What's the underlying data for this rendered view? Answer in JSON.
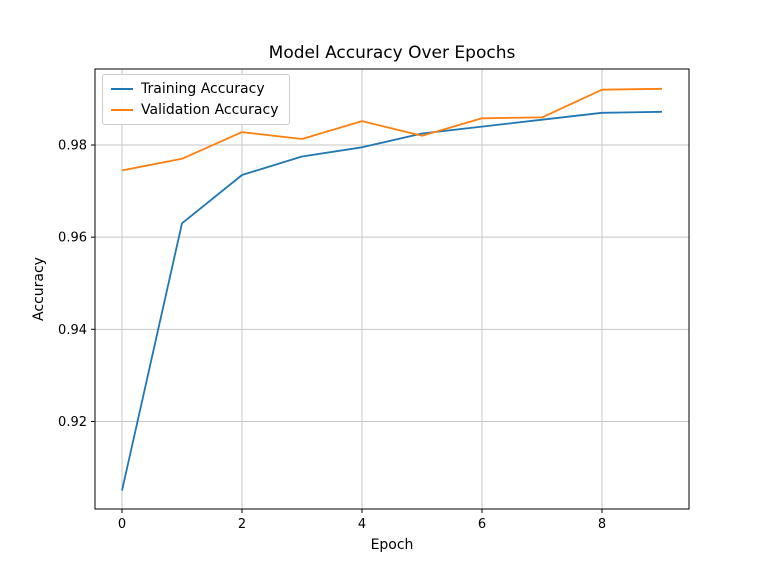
{
  "chart_data": {
    "type": "line",
    "title": "Model Accuracy Over Epochs",
    "xlabel": "Epoch",
    "ylabel": "Accuracy",
    "x": [
      0,
      1,
      2,
      3,
      4,
      5,
      6,
      7,
      8,
      9
    ],
    "series": [
      {
        "name": "Training Accuracy",
        "color": "#1f77b4",
        "values": [
          0.905,
          0.963,
          0.9735,
          0.9775,
          0.9795,
          0.9825,
          0.984,
          0.9855,
          0.987,
          0.9872
        ]
      },
      {
        "name": "Validation Accuracy",
        "color": "#ff7f0e",
        "values": [
          0.9745,
          0.977,
          0.9828,
          0.9813,
          0.9852,
          0.982,
          0.9858,
          0.986,
          0.992,
          0.9922
        ]
      }
    ],
    "xticks": [
      0,
      2,
      4,
      6,
      8
    ],
    "yticks": [
      0.92,
      0.94,
      0.96,
      0.98
    ],
    "xlim": [
      -0.45,
      9.45
    ],
    "ylim": [
      0.901,
      0.9965
    ],
    "grid": true,
    "legend_position": "upper left",
    "grid_color": "#c6c6c6",
    "spine_color": "#000000"
  }
}
